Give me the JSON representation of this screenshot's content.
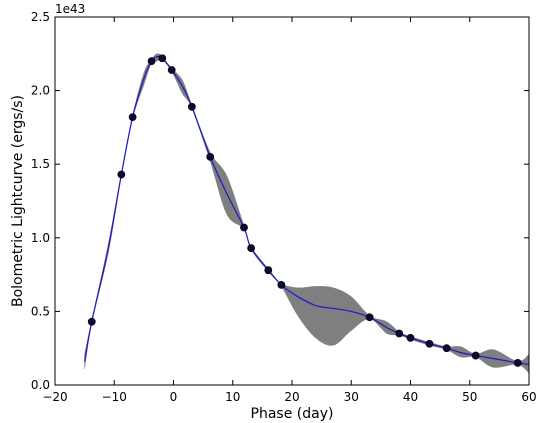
{
  "chart_data": {
    "type": "line",
    "title": "",
    "xlabel": "Phase (day)",
    "ylabel": "Bolometric Lightcurve (ergs/s)",
    "offset_text": "1e43",
    "xlim": [
      -20,
      60
    ],
    "ylim": [
      0.0,
      2.5
    ],
    "xticks": [
      -20,
      -10,
      0,
      10,
      20,
      30,
      40,
      50,
      60
    ],
    "xtick_labels": [
      "−20",
      "−10",
      "0",
      "10",
      "20",
      "30",
      "40",
      "50",
      "60"
    ],
    "yticks": [
      0.0,
      0.5,
      1.0,
      1.5,
      2.0,
      2.5
    ],
    "ytick_labels": [
      "0.0",
      "0.5",
      "1.0",
      "1.5",
      "2.0",
      "2.5"
    ],
    "grid": false,
    "legend": "none",
    "colors": {
      "fit_line": "#1a1acc",
      "band": "#7f7f7f",
      "points": "#0a0a33"
    },
    "series": [
      {
        "kind": "points",
        "x": [
          -13.8,
          -8.8,
          -6.9,
          -3.7,
          -1.9,
          -0.3,
          3.1,
          6.2,
          11.9,
          13.1,
          16.0,
          18.2,
          33.1,
          38.1,
          40.0,
          43.2,
          46.1,
          51.0,
          58.1
        ],
        "y": [
          0.43,
          1.43,
          1.82,
          2.2,
          2.22,
          2.14,
          1.89,
          1.55,
          1.07,
          0.93,
          0.78,
          0.68,
          0.46,
          0.35,
          0.32,
          0.28,
          0.25,
          0.2,
          0.15
        ]
      },
      {
        "kind": "line",
        "x": [
          -15.0,
          -13.8,
          -11.0,
          -8.8,
          -6.9,
          -5.0,
          -3.7,
          -2.8,
          -1.9,
          -0.3,
          1.5,
          3.1,
          6.2,
          9.0,
          11.9,
          13.1,
          16.0,
          18.2,
          21.0,
          24.0,
          27.0,
          30.0,
          33.1,
          36.0,
          38.1,
          40.0,
          43.2,
          46.1,
          48.5,
          51.0,
          54.0,
          58.1,
          60.0
        ],
        "y": [
          0.16,
          0.43,
          0.93,
          1.43,
          1.82,
          2.08,
          2.2,
          2.23,
          2.22,
          2.14,
          2.03,
          1.89,
          1.55,
          1.3,
          1.07,
          0.93,
          0.78,
          0.68,
          0.6,
          0.54,
          0.52,
          0.5,
          0.46,
          0.39,
          0.35,
          0.32,
          0.28,
          0.25,
          0.22,
          0.2,
          0.18,
          0.15,
          0.14
        ]
      },
      {
        "kind": "band",
        "x": [
          -15.0,
          -13.8,
          -11.0,
          -8.8,
          -6.9,
          -5.0,
          -3.7,
          -2.8,
          -1.9,
          -0.3,
          1.5,
          3.1,
          6.2,
          9.0,
          11.9,
          13.1,
          16.0,
          18.2,
          21.0,
          24.0,
          27.0,
          30.0,
          33.1,
          36.0,
          38.1,
          40.0,
          43.2,
          46.1,
          48.5,
          51.0,
          54.0,
          58.1,
          60.0
        ],
        "lower": [
          0.11,
          0.42,
          0.9,
          1.42,
          1.81,
          2.04,
          2.19,
          2.2,
          2.21,
          2.13,
          1.98,
          1.88,
          1.52,
          1.16,
          1.06,
          0.92,
          0.77,
          0.67,
          0.47,
          0.32,
          0.27,
          0.37,
          0.45,
          0.35,
          0.34,
          0.31,
          0.27,
          0.24,
          0.19,
          0.19,
          0.12,
          0.14,
          0.08
        ]
      },
      {
        "kind": "band_upper",
        "x": [
          -15.0,
          -13.8,
          -11.0,
          -8.8,
          -6.9,
          -5.0,
          -3.7,
          -2.8,
          -1.9,
          -0.3,
          1.5,
          3.1,
          6.2,
          9.0,
          11.9,
          13.1,
          16.0,
          18.2,
          21.0,
          24.0,
          27.0,
          30.0,
          33.1,
          36.0,
          38.1,
          40.0,
          43.2,
          46.1,
          48.5,
          51.0,
          54.0,
          58.1,
          60.0
        ],
        "upper": [
          0.21,
          0.44,
          0.96,
          1.44,
          1.83,
          2.12,
          2.21,
          2.25,
          2.23,
          2.15,
          2.07,
          1.9,
          1.58,
          1.42,
          1.08,
          0.94,
          0.79,
          0.69,
          0.66,
          0.67,
          0.66,
          0.6,
          0.47,
          0.43,
          0.36,
          0.33,
          0.29,
          0.26,
          0.26,
          0.21,
          0.24,
          0.16,
          0.21
        ]
      }
    ]
  }
}
